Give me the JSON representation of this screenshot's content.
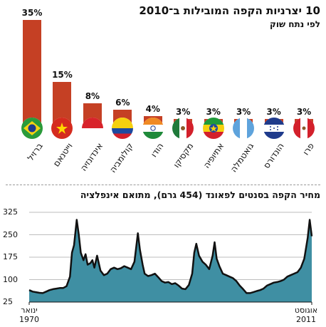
{
  "chart_data": [
    {
      "type": "bar",
      "title": "10 יצרניות הקפה המובילות ב־2010",
      "subtitle": "לפי נתח שוק",
      "categories": [
        "ברזיל",
        "וייטנאם",
        "אינדונזיה",
        "קולומביה",
        "הודו",
        "מקסיקו",
        "אתיופיה",
        "גואטמלה",
        "הונדורס",
        "פרו"
      ],
      "values": [
        35,
        15,
        8,
        6,
        4,
        3,
        3,
        3,
        3,
        3
      ],
      "value_labels": [
        "35%",
        "15%",
        "8%",
        "6%",
        "4%",
        "3%",
        "3%",
        "3%",
        "3%",
        "3%"
      ],
      "flags": [
        "brazil-flag",
        "vietnam-flag",
        "indonesia-flag",
        "colombia-flag",
        "india-flag",
        "mexico-flag",
        "ethiopia-flag",
        "guatemala-flag",
        "honduras-flag",
        "peru-flag"
      ],
      "ylim": [
        0,
        35
      ],
      "bar_color": "#c54024",
      "grid": false
    },
    {
      "type": "area",
      "title": "מחיר הקפה בסנטים לפאונד (454 גרם), מתואם אינפלציה",
      "x_start_label": [
        "ינואר",
        "1970"
      ],
      "x_end_label": [
        "אוגוסט",
        "2011"
      ],
      "xlim": [
        1970.0,
        2011.6
      ],
      "ylim": [
        25,
        325
      ],
      "yticks": [
        325,
        250,
        175,
        100,
        25
      ],
      "ytick_labels": [
        "325",
        "250",
        "175",
        "100",
        "25"
      ],
      "fill_color": "#3f8fa3",
      "line_color": "#111111",
      "grid": true,
      "x": [
        1970.0,
        1970.5,
        1971.0,
        1971.5,
        1972.0,
        1972.5,
        1973.0,
        1973.5,
        1974.0,
        1974.5,
        1975.0,
        1975.5,
        1976.0,
        1976.3,
        1976.6,
        1977.0,
        1977.3,
        1977.6,
        1978.0,
        1978.3,
        1978.6,
        1979.0,
        1979.3,
        1979.6,
        1980.0,
        1980.5,
        1981.0,
        1981.5,
        1982.0,
        1982.5,
        1983.0,
        1983.5,
        1984.0,
        1984.5,
        1985.0,
        1985.5,
        1986.0,
        1986.3,
        1986.7,
        1987.0,
        1987.5,
        1988.0,
        1988.5,
        1989.0,
        1989.5,
        1990.0,
        1990.5,
        1991.0,
        1991.5,
        1992.0,
        1992.5,
        1993.0,
        1993.5,
        1994.0,
        1994.3,
        1994.6,
        1995.0,
        1995.5,
        1996.0,
        1996.5,
        1997.0,
        1997.3,
        1997.6,
        1998.0,
        1998.5,
        1999.0,
        1999.5,
        2000.0,
        2000.5,
        2001.0,
        2001.5,
        2002.0,
        2002.5,
        2003.0,
        2003.5,
        2004.0,
        2004.5,
        2005.0,
        2005.5,
        2006.0,
        2006.5,
        2007.0,
        2007.5,
        2008.0,
        2008.5,
        2009.0,
        2009.5,
        2010.0,
        2010.5,
        2011.0,
        2011.3,
        2011.6
      ],
      "y": [
        65,
        60,
        58,
        56,
        55,
        60,
        65,
        68,
        70,
        72,
        72,
        78,
        110,
        190,
        215,
        300,
        250,
        190,
        165,
        185,
        150,
        155,
        165,
        140,
        180,
        130,
        115,
        120,
        135,
        140,
        135,
        138,
        145,
        140,
        135,
        160,
        255,
        200,
        150,
        120,
        112,
        115,
        120,
        108,
        95,
        90,
        92,
        85,
        88,
        80,
        70,
        68,
        82,
        120,
        190,
        220,
        180,
        160,
        150,
        135,
        180,
        225,
        170,
        145,
        120,
        115,
        110,
        105,
        95,
        80,
        68,
        55,
        55,
        58,
        62,
        65,
        70,
        80,
        85,
        90,
        92,
        95,
        100,
        110,
        115,
        120,
        125,
        140,
        170,
        240,
        300,
        245
      ]
    }
  ]
}
